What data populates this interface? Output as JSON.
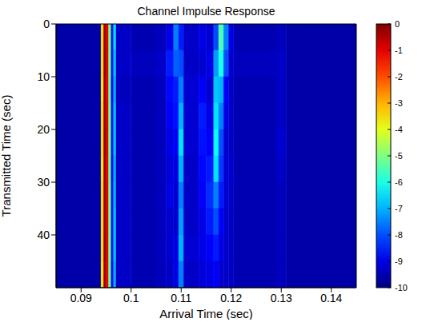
{
  "chart_data": {
    "type": "heatmap",
    "title": "Channel Impulse Response",
    "x_label": "Arrival Time (sec)",
    "y_label": "Transmitted Time (sec)",
    "x_edges": [
      0.085,
      0.094,
      0.0945,
      0.095,
      0.0955,
      0.096,
      0.0965,
      0.097,
      0.1,
      0.105,
      0.107,
      0.1085,
      0.1095,
      0.1105,
      0.1135,
      0.115,
      0.1165,
      0.1175,
      0.1185,
      0.1195,
      0.1205,
      0.129,
      0.131,
      0.145
    ],
    "y_edges": [
      0,
      5,
      10,
      15,
      20,
      25,
      30,
      35,
      40,
      45,
      50
    ],
    "values": [
      [
        -9.6,
        -3.5,
        -0.3,
        -1,
        -5,
        -8.5,
        -6.5,
        -9.3,
        -9.5,
        -9.4,
        -9,
        -7.5,
        -8.5,
        -9.3,
        -9,
        -9.2,
        -8,
        -5.5,
        -7.5,
        -9,
        -9.5,
        -9.4,
        -9.6
      ],
      [
        -9.6,
        -3.5,
        -0.2,
        -1,
        -5,
        -8.5,
        -6.8,
        -9.3,
        -9.4,
        -9.3,
        -8.5,
        -7.8,
        -8,
        -9.3,
        -9.2,
        -9,
        -7.2,
        -6,
        -8,
        -9.2,
        -9.4,
        -9.3,
        -9.6
      ],
      [
        -9.6,
        -3.6,
        -0.3,
        -1.1,
        -5.2,
        -8.6,
        -7,
        -9.4,
        -9.5,
        -9.4,
        -8.7,
        -8.5,
        -7.5,
        -9.2,
        -8.8,
        -9.2,
        -6.8,
        -7,
        -8.8,
        -9.3,
        -9.5,
        -9.3,
        -9.6
      ],
      [
        -9.6,
        -3.5,
        -0.3,
        -1,
        -5,
        -8.5,
        -6.8,
        -9.3,
        -9.5,
        -9.4,
        -8.8,
        -8.6,
        -7,
        -9.2,
        -8.5,
        -9,
        -6.5,
        -7.5,
        -9,
        -9.3,
        -9.5,
        -9.3,
        -9.6
      ],
      [
        -9.6,
        -3.5,
        -0.2,
        -1,
        -5,
        -8.5,
        -6.8,
        -9.3,
        -9.5,
        -9.4,
        -9,
        -8.8,
        -6.5,
        -9.2,
        -8.6,
        -8.8,
        -6.2,
        -8,
        -9.2,
        -9.3,
        -9.5,
        -9.2,
        -9.6
      ],
      [
        -9.6,
        -3.6,
        -0.3,
        -1.1,
        -5.1,
        -8.6,
        -7,
        -9.3,
        -9.5,
        -9.4,
        -9.1,
        -9,
        -7,
        -9.3,
        -8.7,
        -8.5,
        -6.5,
        -8.2,
        -9.2,
        -9.2,
        -9.5,
        -9.3,
        -9.6
      ],
      [
        -9.6,
        -3.5,
        -0.3,
        -1,
        -5,
        -8.5,
        -6.9,
        -9.3,
        -9.5,
        -9.4,
        -9,
        -9.2,
        -7.5,
        -9.3,
        -8.8,
        -8.3,
        -7.5,
        -8.5,
        -9.2,
        -9.3,
        -9.5,
        -9.4,
        -9.6
      ],
      [
        -9.6,
        -3.5,
        -0.3,
        -1,
        -5,
        -8.5,
        -6.8,
        -9.3,
        -9.5,
        -9.4,
        -9.2,
        -9.2,
        -7.2,
        -9.3,
        -9,
        -8.5,
        -8,
        -8.8,
        -9.3,
        -9.3,
        -9.5,
        -9.4,
        -9.6
      ],
      [
        -9.6,
        -3.5,
        -0.2,
        -1,
        -5,
        -8.5,
        -6.8,
        -9.3,
        -9.5,
        -9.4,
        -9.2,
        -9,
        -7,
        -9.2,
        -9,
        -8.8,
        -8.5,
        -9,
        -9.3,
        -9.3,
        -9.5,
        -9.4,
        -9.6
      ],
      [
        -9.6,
        -3.6,
        -0.3,
        -1.1,
        -5.1,
        -8.6,
        -7,
        -9.3,
        -9.5,
        -9.4,
        -9.3,
        -9,
        -7.5,
        -9.3,
        -9.1,
        -9,
        -8.8,
        -9.2,
        -9.3,
        -9.3,
        -9.5,
        -9.4,
        -9.6
      ]
    ],
    "xlim": [
      0.085,
      0.145
    ],
    "xticks": [
      0.09,
      0.1,
      0.11,
      0.12,
      0.13,
      0.14
    ],
    "ylim": [
      0,
      50
    ],
    "yticks": [
      0,
      10,
      20,
      30,
      40
    ],
    "colorbar_range": [
      -10,
      0
    ],
    "colorbar_ticks": [
      0,
      -1,
      -2,
      -3,
      -4,
      -5,
      -6,
      -7,
      -8,
      -9,
      -10
    ]
  }
}
